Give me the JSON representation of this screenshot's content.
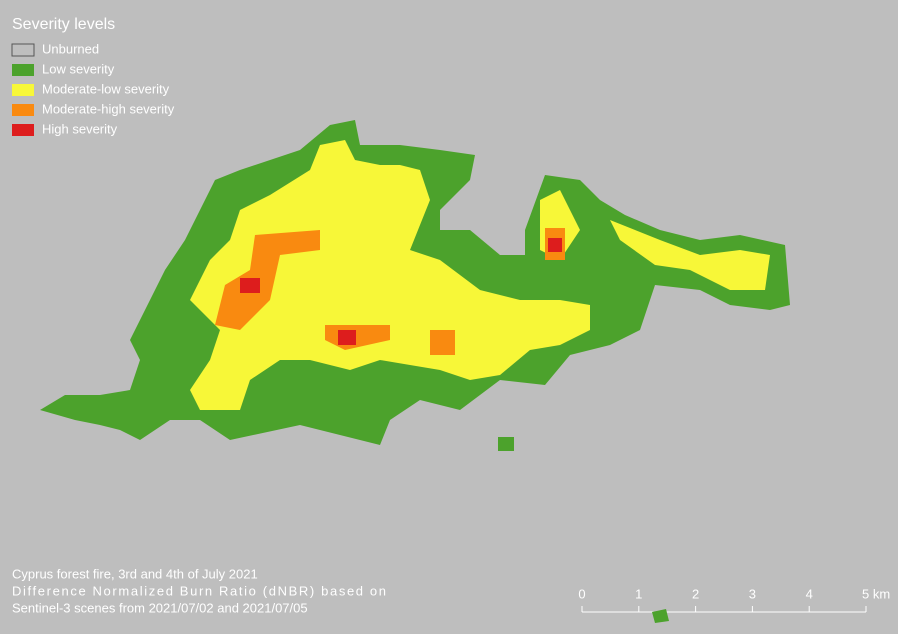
{
  "legend": {
    "title": "Severity levels",
    "items": [
      {
        "label": "Unburned",
        "color": "#bebebe"
      },
      {
        "label": "Low severity",
        "color": "#4ca22c"
      },
      {
        "label": "Moderate-low severity",
        "color": "#f7f738"
      },
      {
        "label": "Moderate-high severity",
        "color": "#f98a10"
      },
      {
        "label": "High severity",
        "color": "#dd1d1d"
      }
    ]
  },
  "caption": [
    "Cyprus forest fire, 3rd and 4th of July 2021",
    "Difference Normalized Burn Ratio (dNBR) based on",
    "Sentinel-3 scenes from 2021/07/02 and 2021/07/05"
  ],
  "scale_bar": {
    "labels": [
      "0",
      "1",
      "2",
      "3",
      "4",
      "5 km"
    ]
  }
}
